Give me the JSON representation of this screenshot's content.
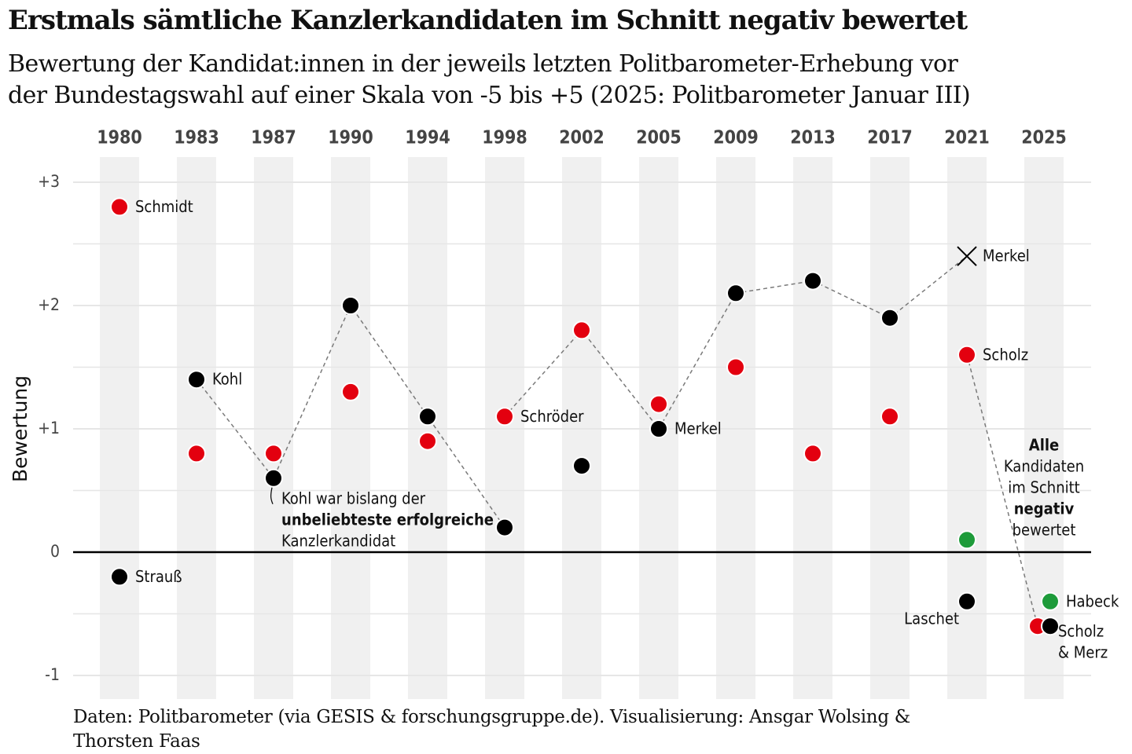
{
  "title": "Erstmals sämtliche Kanzlerkandidaten im Schnitt negativ bewertet",
  "subtitle_lines": [
    "Bewertung der Kandidat:innen in der jeweils letzten Politbarometer-Erhebung vor",
    "der Bundestagswahl auf einer Skala von -5 bis +5 (2025: Politbarometer Januar III)"
  ],
  "caption_lines": [
    "Daten: Politbarometer (via GESIS & forschungsgruppe.de). Visualisierung: Ansgar Wolsing &",
    "Thorsten Faas"
  ],
  "colors": {
    "red": "#e3000f",
    "black": "#000000",
    "green": "#1e9b3a",
    "band": "#f0f0f0",
    "grid": "#e6e6e6",
    "connector": "#7a7a7a"
  },
  "chart_data": {
    "type": "scatter",
    "ylabel": "Bewertung",
    "ylim": [
      -1.1,
      3.2
    ],
    "y_ticks": [
      {
        "value": 3,
        "label": "+3"
      },
      {
        "value": 2,
        "label": "+2"
      },
      {
        "value": 1,
        "label": "+1"
      },
      {
        "value": 0,
        "label": "0"
      },
      {
        "value": -1,
        "label": "-1"
      }
    ],
    "years": [
      "1980",
      "1983",
      "1987",
      "1990",
      "1994",
      "1998",
      "2002",
      "2005",
      "2009",
      "2013",
      "2017",
      "2021",
      "2025"
    ],
    "points": [
      {
        "year": "1980",
        "value": 2.8,
        "color": "red",
        "label": "Schmidt",
        "label_pos": "right"
      },
      {
        "year": "1980",
        "value": -0.2,
        "color": "black",
        "label": "Strauß",
        "label_pos": "right"
      },
      {
        "year": "1983",
        "value": 1.4,
        "color": "black",
        "label": "Kohl",
        "label_pos": "right"
      },
      {
        "year": "1983",
        "value": 0.8,
        "color": "red",
        "label": "",
        "label_pos": ""
      },
      {
        "year": "1987",
        "value": 0.8,
        "color": "red",
        "label": "",
        "label_pos": ""
      },
      {
        "year": "1987",
        "value": 0.6,
        "color": "black",
        "label": "",
        "label_pos": ""
      },
      {
        "year": "1990",
        "value": 2.0,
        "color": "black",
        "label": "",
        "label_pos": ""
      },
      {
        "year": "1990",
        "value": 1.3,
        "color": "red",
        "label": "",
        "label_pos": ""
      },
      {
        "year": "1994",
        "value": 1.1,
        "color": "black",
        "label": "",
        "label_pos": ""
      },
      {
        "year": "1994",
        "value": 0.9,
        "color": "red",
        "label": "",
        "label_pos": ""
      },
      {
        "year": "1998",
        "value": 1.1,
        "color": "red",
        "label": "Schröder",
        "label_pos": "right"
      },
      {
        "year": "1998",
        "value": 0.2,
        "color": "black",
        "label": "",
        "label_pos": ""
      },
      {
        "year": "2002",
        "value": 1.8,
        "color": "red",
        "label": "",
        "label_pos": ""
      },
      {
        "year": "2002",
        "value": 0.7,
        "color": "black",
        "label": "",
        "label_pos": ""
      },
      {
        "year": "2005",
        "value": 1.2,
        "color": "red",
        "label": "",
        "label_pos": ""
      },
      {
        "year": "2005",
        "value": 1.0,
        "color": "black",
        "label": "Merkel",
        "label_pos": "right"
      },
      {
        "year": "2009",
        "value": 2.1,
        "color": "black",
        "label": "",
        "label_pos": ""
      },
      {
        "year": "2009",
        "value": 1.5,
        "color": "red",
        "label": "",
        "label_pos": ""
      },
      {
        "year": "2013",
        "value": 2.2,
        "color": "black",
        "label": "",
        "label_pos": ""
      },
      {
        "year": "2013",
        "value": 0.8,
        "color": "red",
        "label": "",
        "label_pos": ""
      },
      {
        "year": "2017",
        "value": 1.9,
        "color": "black",
        "label": "",
        "label_pos": ""
      },
      {
        "year": "2017",
        "value": 1.1,
        "color": "red",
        "label": "",
        "label_pos": ""
      },
      {
        "year": "2021",
        "value": 2.4,
        "color": "black",
        "marker": "x",
        "label": "Merkel",
        "label_pos": "right"
      },
      {
        "year": "2021",
        "value": 1.6,
        "color": "red",
        "label": "Scholz",
        "label_pos": "right"
      },
      {
        "year": "2021",
        "value": 0.1,
        "color": "green",
        "label": "",
        "label_pos": ""
      },
      {
        "year": "2021",
        "value": -0.4,
        "color": "black",
        "label": "Laschet",
        "label_pos": "below-left"
      },
      {
        "year": "2025",
        "value": -0.4,
        "color": "green",
        "label": "Habeck",
        "label_pos": "right",
        "offset": "right"
      },
      {
        "year": "2025",
        "value": -0.6,
        "color": "red",
        "label": "",
        "label_pos": "",
        "offset": "left"
      },
      {
        "year": "2025",
        "value": -0.6,
        "color": "black",
        "label": "",
        "label_pos": "",
        "offset": "right"
      }
    ],
    "chancellor_path": [
      {
        "year": "1983",
        "value": 1.4
      },
      {
        "year": "1987",
        "value": 0.6
      },
      {
        "year": "1990",
        "value": 2.0
      },
      {
        "year": "1994",
        "value": 1.1
      },
      {
        "year": "1998",
        "value": 0.2
      }
    ],
    "chancellor_path_2": [
      {
        "year": "1998",
        "value": 1.1
      },
      {
        "year": "2002",
        "value": 1.8
      },
      {
        "year": "2005",
        "value": 1.0
      }
    ],
    "chancellor_path_3": [
      {
        "year": "2005",
        "value": 1.0
      },
      {
        "year": "2009",
        "value": 2.1
      },
      {
        "year": "2013",
        "value": 2.2
      },
      {
        "year": "2017",
        "value": 1.9
      },
      {
        "year": "2021",
        "value": 2.4
      }
    ],
    "chancellor_path_4": [
      {
        "year": "2021",
        "value": 1.6
      },
      {
        "year": "2025",
        "value": -0.6,
        "offset": "left"
      }
    ],
    "annotations": {
      "scholz_merz": [
        "Scholz",
        "& Merz"
      ],
      "kohl_note": {
        "line1": "Kohl war bislang der",
        "line2_bold": "unbeliebteste erfolgreiche",
        "line3": "Kanzlerkandidat"
      },
      "alle_note": [
        {
          "text": "Alle",
          "bold": true
        },
        {
          "text": "Kandidaten",
          "bold": false
        },
        {
          "text": "im Schnitt",
          "bold": false
        },
        {
          "text": "negativ",
          "bold": true
        },
        {
          "text": "bewertet",
          "bold": false
        }
      ]
    }
  }
}
